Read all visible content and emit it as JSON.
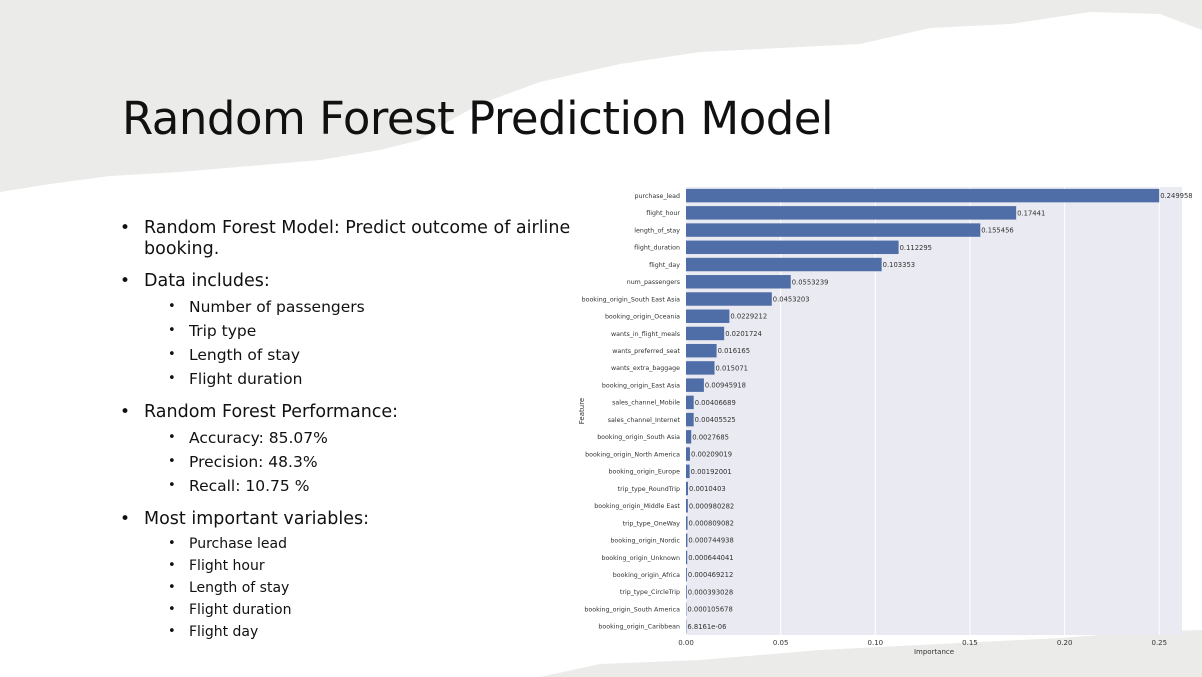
{
  "slide": {
    "title": "Random Forest Prediction Model",
    "bullets": [
      {
        "text": "Random Forest Model: Predict outcome of airline booking.",
        "sub": [],
        "sub_small": false
      },
      {
        "text": "Data includes:",
        "sub": [
          "Number of passengers",
          "Trip type",
          "Length of stay",
          "Flight duration"
        ],
        "sub_small": false
      },
      {
        "text": "Random Forest Performance:",
        "sub": [
          "Accuracy: 85.07%",
          "Precision: 48.3%",
          "Recall: 10.75 %"
        ],
        "sub_small": false
      },
      {
        "text": "Most important variables:",
        "sub": [
          "Purchase lead",
          "Flight hour",
          "Length of stay",
          "Flight duration",
          "Flight day"
        ],
        "sub_small": true
      }
    ]
  },
  "colors": {
    "bar": "#4f6da6",
    "plot_bg": "#eaeaf2",
    "grid": "#ffffff",
    "background_torn_paper": "#ebebe9"
  },
  "chart_data": {
    "type": "bar",
    "orientation": "horizontal",
    "title": "",
    "xlabel": "Importance",
    "ylabel": "Feature",
    "xlim": [
      0,
      0.262
    ],
    "xticks": [
      0.0,
      0.05,
      0.1,
      0.15,
      0.2,
      0.25
    ],
    "xtick_labels": [
      "0.00",
      "0.05",
      "0.10",
      "0.15",
      "0.20",
      "0.25"
    ],
    "grid": true,
    "categories": [
      "purchase_lead",
      "flight_hour",
      "length_of_stay",
      "flight_duration",
      "flight_day",
      "num_passengers",
      "booking_origin_South East Asia",
      "booking_origin_Oceania",
      "wants_in_flight_meals",
      "wants_preferred_seat",
      "wants_extra_baggage",
      "booking_origin_East Asia",
      "sales_channel_Mobile",
      "sales_channel_Internet",
      "booking_origin_South Asia",
      "booking_origin_North America",
      "booking_origin_Europe",
      "trip_type_RoundTrip",
      "booking_origin_Middle East",
      "trip_type_OneWay",
      "booking_origin_Nordic",
      "booking_origin_Unknown",
      "booking_origin_Africa",
      "trip_type_CircleTrip",
      "booking_origin_South America",
      "booking_origin_Caribbean"
    ],
    "values": [
      0.249958,
      0.17441,
      0.155456,
      0.112295,
      0.103353,
      0.0553239,
      0.0453203,
      0.0229212,
      0.0201724,
      0.016165,
      0.015071,
      0.00945918,
      0.00406689,
      0.00405525,
      0.0027685,
      0.00209019,
      0.00192001,
      0.0010403,
      0.000980282,
      0.000809082,
      0.000744938,
      0.000644041,
      0.000469212,
      0.000393028,
      0.000105678,
      6.8161e-06
    ],
    "value_labels": [
      "0.249958",
      "0.17441",
      "0.155456",
      "0.112295",
      "0.103353",
      "0.0553239",
      "0.0453203",
      "0.0229212",
      "0.0201724",
      "0.016165",
      "0.015071",
      "0.00945918",
      "0.00406689",
      "0.00405525",
      "0.0027685",
      "0.00209019",
      "0.00192001",
      "0.0010403",
      "0.000980282",
      "0.000809082",
      "0.000744938",
      "0.000644041",
      "0.000469212",
      "0.000393028",
      "0.000105678",
      "6.8161e-06"
    ]
  }
}
